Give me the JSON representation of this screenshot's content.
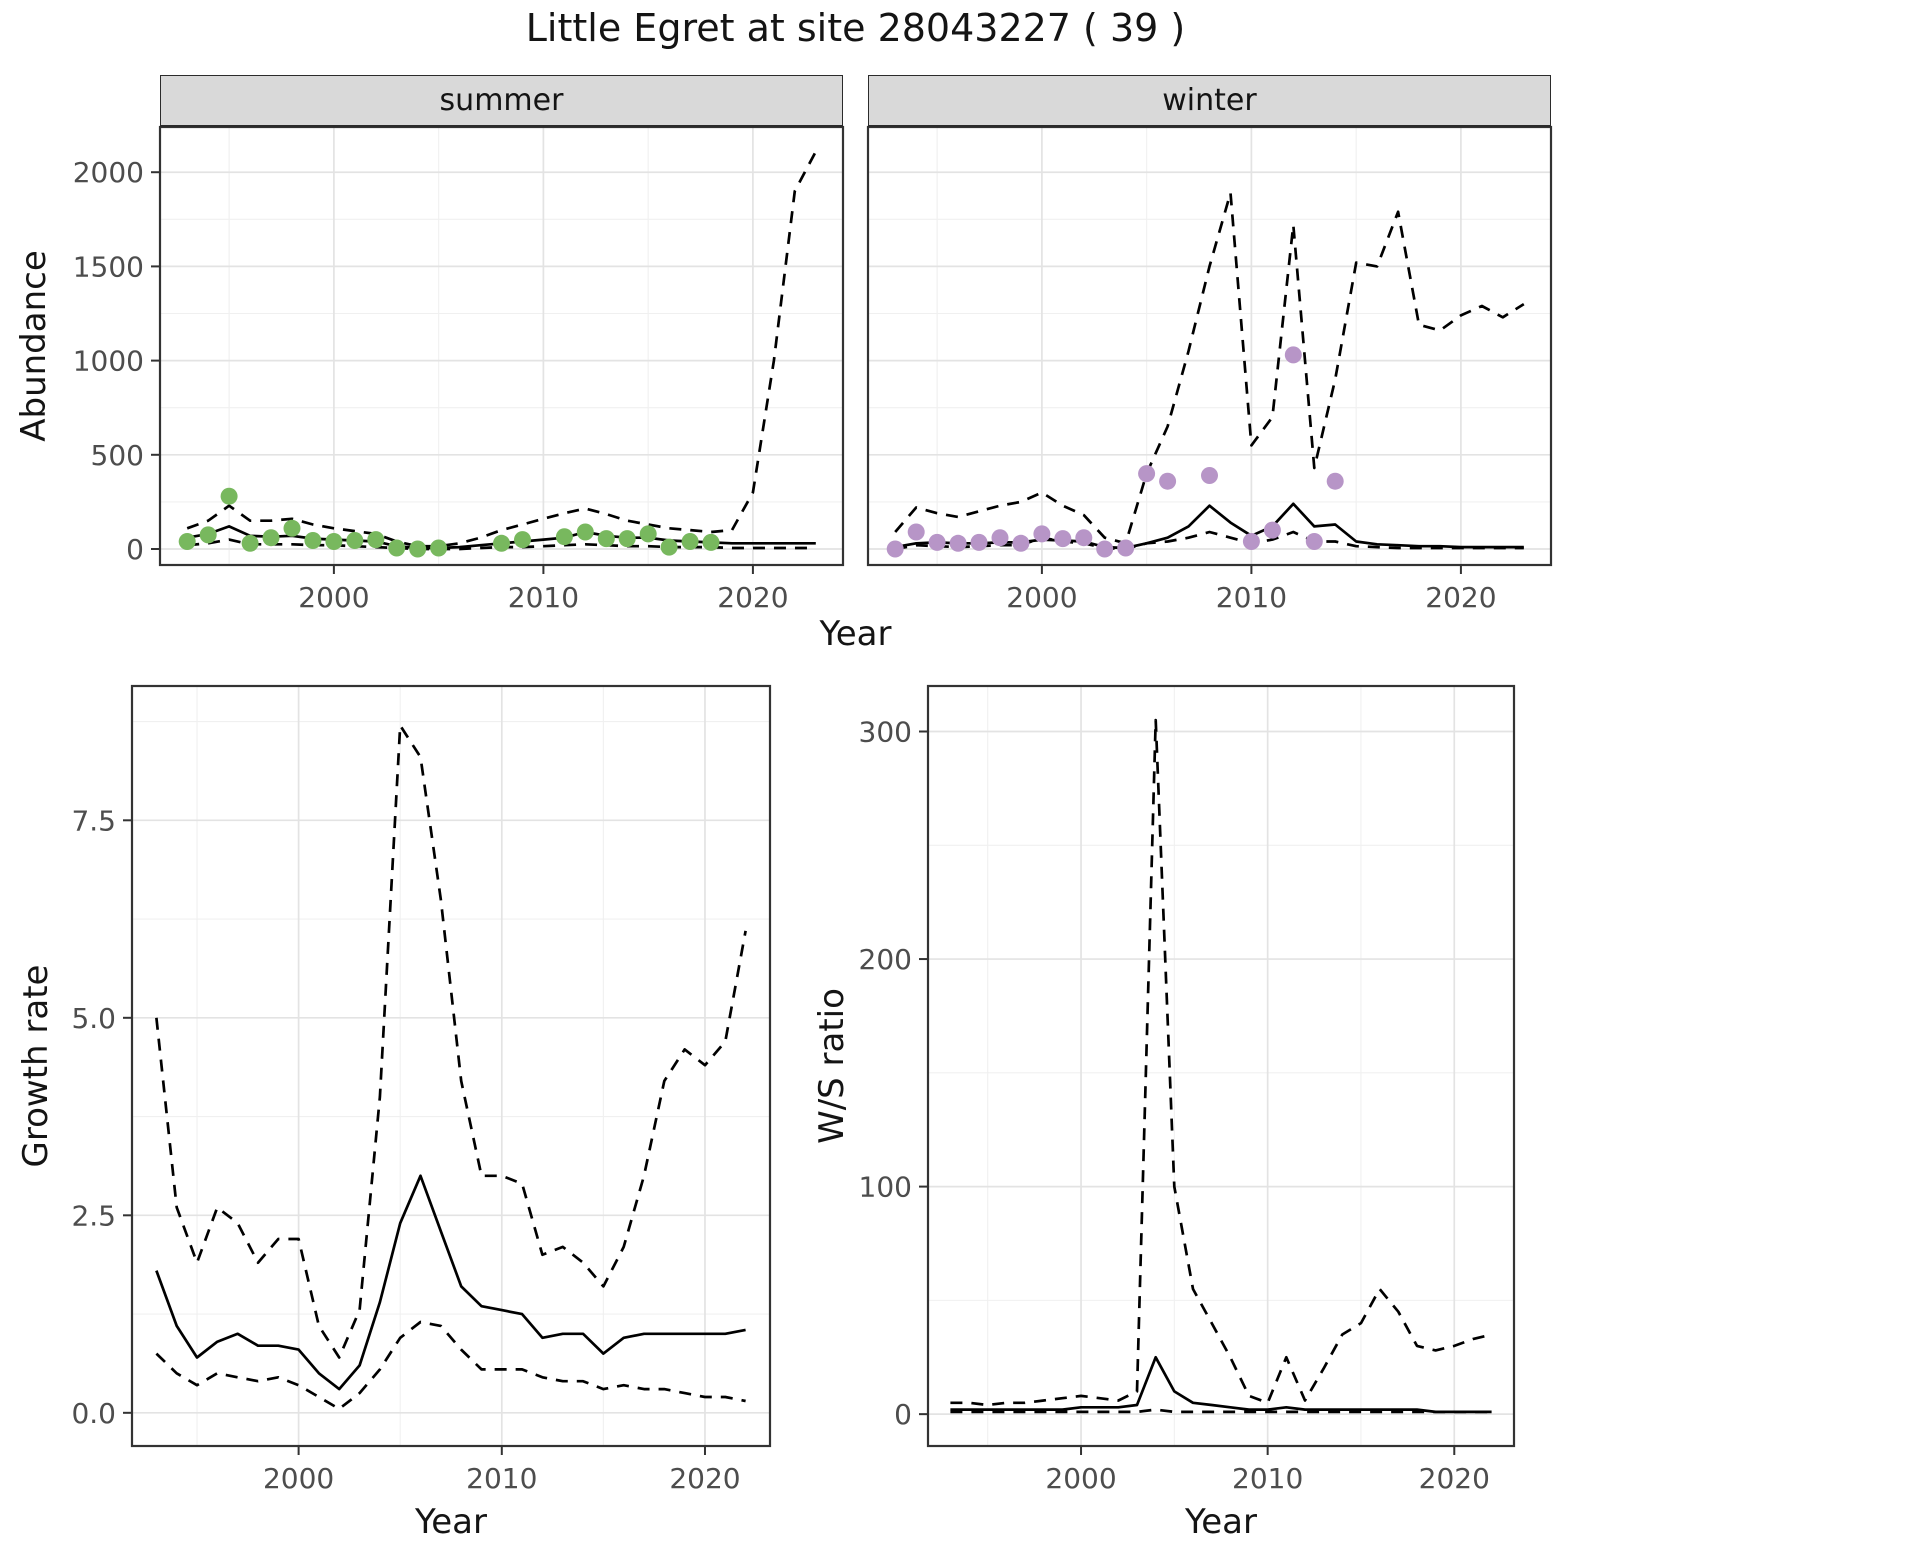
{
  "title": "Little Egret at site 28043227 ( 39 )",
  "colors": {
    "summer_points": "#78b85e",
    "winter_points": "#b795c7",
    "line": "#000000",
    "strip_background": "#d9d9d9",
    "panel_border": "#333333",
    "grid_major": "#e3e3e3",
    "grid_minor": "#f0f0f0",
    "tick_label": "#4d4d4d"
  },
  "chart_data": [
    {
      "id": "abundance-summer",
      "type": "line",
      "facet_label": "summer",
      "xlabel": "Year",
      "ylabel": "Abundance",
      "xlim": [
        1991.7,
        2024.3
      ],
      "ylim": [
        -85,
        2240
      ],
      "xticks": [
        2000,
        2010,
        2020
      ],
      "yticks": [
        0,
        500,
        1000,
        1500,
        2000
      ],
      "series": [
        {
          "name": "lower_ci",
          "kind": "line",
          "dash": true,
          "x": [
            1993,
            1994,
            1995,
            1996,
            1997,
            1998,
            1999,
            2000,
            2001,
            2002,
            2003,
            2004,
            2005,
            2006,
            2007,
            2008,
            2009,
            2010,
            2011,
            2012,
            2013,
            2014,
            2015,
            2016,
            2017,
            2018,
            2019,
            2020,
            2021,
            2022,
            2023
          ],
          "y": [
            20,
            30,
            50,
            25,
            25,
            25,
            20,
            20,
            15,
            10,
            5,
            0,
            0,
            0,
            5,
            10,
            10,
            15,
            20,
            25,
            20,
            15,
            15,
            10,
            10,
            10,
            5,
            5,
            5,
            5,
            5
          ]
        },
        {
          "name": "upper_ci",
          "kind": "line",
          "dash": true,
          "x": [
            1993,
            1994,
            1995,
            1996,
            1997,
            1998,
            1999,
            2000,
            2001,
            2002,
            2003,
            2004,
            2005,
            2006,
            2007,
            2008,
            2009,
            2010,
            2011,
            2012,
            2013,
            2014,
            2015,
            2016,
            2017,
            2018,
            2019,
            2020,
            2021,
            2022,
            2023
          ],
          "y": [
            110,
            150,
            230,
            150,
            150,
            160,
            130,
            110,
            95,
            80,
            40,
            15,
            15,
            30,
            60,
            100,
            130,
            160,
            190,
            215,
            185,
            150,
            130,
            110,
            100,
            90,
            100,
            300,
            1000,
            1900,
            2110
          ]
        },
        {
          "name": "median",
          "kind": "line",
          "dash": false,
          "x": [
            1993,
            1994,
            1995,
            1996,
            1997,
            1998,
            1999,
            2000,
            2001,
            2002,
            2003,
            2004,
            2005,
            2006,
            2007,
            2008,
            2009,
            2010,
            2011,
            2012,
            2013,
            2014,
            2015,
            2016,
            2017,
            2018,
            2019,
            2020,
            2021,
            2022,
            2023
          ],
          "y": [
            60,
            80,
            120,
            70,
            65,
            70,
            55,
            50,
            45,
            40,
            15,
            5,
            5,
            10,
            20,
            30,
            40,
            50,
            60,
            90,
            70,
            60,
            60,
            45,
            40,
            35,
            30,
            30,
            30,
            30,
            30
          ]
        },
        {
          "name": "observed_counts",
          "kind": "points",
          "color": "#78b85e",
          "x": [
            1993,
            1994,
            1995,
            1996,
            1997,
            1998,
            1999,
            2000,
            2001,
            2002,
            2003,
            2004,
            2005,
            2008,
            2009,
            2011,
            2012,
            2013,
            2014,
            2015,
            2016,
            2017,
            2018
          ],
          "y": [
            40,
            75,
            280,
            30,
            60,
            110,
            45,
            40,
            45,
            50,
            5,
            0,
            5,
            30,
            50,
            65,
            90,
            55,
            55,
            80,
            10,
            40,
            35
          ]
        }
      ]
    },
    {
      "id": "abundance-winter",
      "type": "line",
      "facet_label": "winter",
      "xlabel": "Year",
      "ylabel": "Abundance",
      "xlim": [
        1991.7,
        2024.3
      ],
      "ylim": [
        -85,
        2240
      ],
      "xticks": [
        2000,
        2010,
        2020
      ],
      "yticks": [
        0,
        500,
        1000,
        1500,
        2000
      ],
      "series": [
        {
          "name": "lower_ci",
          "kind": "line",
          "dash": true,
          "x": [
            1993,
            1994,
            1995,
            1996,
            1997,
            1998,
            1999,
            2000,
            2001,
            2002,
            2003,
            2004,
            2005,
            2006,
            2007,
            2008,
            2009,
            2010,
            2011,
            2012,
            2013,
            2014,
            2015,
            2016,
            2017,
            2018,
            2019,
            2020,
            2021,
            2022,
            2023
          ],
          "y": [
            0,
            20,
            15,
            10,
            15,
            20,
            20,
            60,
            40,
            30,
            5,
            0,
            30,
            40,
            60,
            90,
            60,
            30,
            50,
            90,
            40,
            40,
            15,
            10,
            5,
            5,
            5,
            5,
            5,
            5,
            5
          ]
        },
        {
          "name": "upper_ci",
          "kind": "line",
          "dash": true,
          "x": [
            1993,
            1994,
            1995,
            1996,
            1997,
            1998,
            1999,
            2000,
            2001,
            2002,
            2003,
            2004,
            2005,
            2006,
            2007,
            2008,
            2009,
            2010,
            2011,
            2012,
            2013,
            2014,
            2015,
            2016,
            2017,
            2018,
            2019,
            2020,
            2021,
            2022,
            2023
          ],
          "y": [
            90,
            220,
            190,
            170,
            200,
            230,
            250,
            300,
            230,
            180,
            60,
            30,
            400,
            650,
            1050,
            1500,
            1890,
            550,
            700,
            1720,
            430,
            900,
            1520,
            1500,
            1790,
            1190,
            1160,
            1240,
            1290,
            1230,
            1300
          ]
        },
        {
          "name": "median",
          "kind": "line",
          "dash": false,
          "x": [
            1993,
            1994,
            1995,
            1996,
            1997,
            1998,
            1999,
            2000,
            2001,
            2002,
            2003,
            2004,
            2005,
            2006,
            2007,
            2008,
            2009,
            2010,
            2011,
            2012,
            2013,
            2014,
            2015,
            2016,
            2017,
            2018,
            2019,
            2020,
            2021,
            2022,
            2023
          ],
          "y": [
            10,
            30,
            35,
            30,
            30,
            35,
            35,
            50,
            45,
            40,
            10,
            5,
            30,
            60,
            120,
            230,
            140,
            70,
            120,
            240,
            120,
            130,
            40,
            25,
            20,
            15,
            15,
            10,
            10,
            10,
            10
          ]
        },
        {
          "name": "observed_counts",
          "kind": "points",
          "color": "#b795c7",
          "x": [
            1993,
            1994,
            1995,
            1996,
            1997,
            1998,
            1999,
            2000,
            2001,
            2002,
            2003,
            2004,
            2005,
            2006,
            2008,
            2010,
            2011,
            2012,
            2013,
            2014
          ],
          "y": [
            0,
            90,
            35,
            30,
            35,
            60,
            30,
            80,
            55,
            60,
            0,
            5,
            400,
            360,
            390,
            40,
            100,
            1030,
            40,
            360
          ]
        }
      ]
    },
    {
      "id": "growth-rate",
      "type": "line",
      "facet_label": "",
      "xlabel": "Year",
      "ylabel": "Growth rate",
      "xlim": [
        1991.8,
        2023.2
      ],
      "ylim": [
        -0.42,
        9.2
      ],
      "xticks": [
        2000,
        2010,
        2020
      ],
      "yticks": [
        0,
        2.5,
        5,
        7.5
      ],
      "ytick_labels": [
        "0.0",
        "2.5",
        "5.0",
        "7.5"
      ],
      "series": [
        {
          "name": "lower_ci",
          "kind": "line",
          "dash": true,
          "x": [
            1993,
            1994,
            1995,
            1996,
            1997,
            1998,
            1999,
            2000,
            2001,
            2002,
            2003,
            2004,
            2005,
            2006,
            2007,
            2008,
            2009,
            2010,
            2011,
            2012,
            2013,
            2014,
            2015,
            2016,
            2017,
            2018,
            2019,
            2020,
            2021,
            2022
          ],
          "y": [
            0.75,
            0.5,
            0.35,
            0.5,
            0.45,
            0.4,
            0.45,
            0.35,
            0.2,
            0.05,
            0.25,
            0.55,
            0.95,
            1.15,
            1.1,
            0.8,
            0.55,
            0.55,
            0.55,
            0.45,
            0.4,
            0.4,
            0.3,
            0.35,
            0.3,
            0.3,
            0.25,
            0.2,
            0.2,
            0.15
          ]
        },
        {
          "name": "upper_ci",
          "kind": "line",
          "dash": true,
          "x": [
            1993,
            1994,
            1995,
            1996,
            1997,
            1998,
            1999,
            2000,
            2001,
            2002,
            2003,
            2004,
            2005,
            2006,
            2007,
            2008,
            2009,
            2010,
            2011,
            2012,
            2013,
            2014,
            2015,
            2016,
            2017,
            2018,
            2019,
            2020,
            2021,
            2022
          ],
          "y": [
            5.0,
            2.6,
            1.9,
            2.6,
            2.4,
            1.9,
            2.2,
            2.2,
            1.1,
            0.7,
            1.3,
            4.0,
            8.7,
            8.3,
            6.5,
            4.2,
            3.0,
            3.0,
            2.9,
            2.0,
            2.1,
            1.9,
            1.6,
            2.1,
            3.0,
            4.2,
            4.6,
            4.4,
            4.7,
            6.1
          ]
        },
        {
          "name": "median",
          "kind": "line",
          "dash": false,
          "x": [
            1993,
            1994,
            1995,
            1996,
            1997,
            1998,
            1999,
            2000,
            2001,
            2002,
            2003,
            2004,
            2005,
            2006,
            2007,
            2008,
            2009,
            2010,
            2011,
            2012,
            2013,
            2014,
            2015,
            2016,
            2017,
            2018,
            2019,
            2020,
            2021,
            2022
          ],
          "y": [
            1.8,
            1.1,
            0.7,
            0.9,
            1.0,
            0.85,
            0.85,
            0.8,
            0.5,
            0.3,
            0.6,
            1.4,
            2.4,
            3.0,
            2.3,
            1.6,
            1.35,
            1.3,
            1.25,
            0.95,
            1.0,
            1.0,
            0.75,
            0.95,
            1.0,
            1.0,
            1.0,
            1.0,
            1.0,
            1.05
          ]
        }
      ]
    },
    {
      "id": "ws-ratio",
      "type": "line",
      "facet_label": "",
      "xlabel": "Year",
      "ylabel": "W/S ratio",
      "xlim": [
        1991.8,
        2023.2
      ],
      "ylim": [
        -14,
        320
      ],
      "xticks": [
        2000,
        2010,
        2020
      ],
      "yticks": [
        0,
        100,
        200,
        300
      ],
      "series": [
        {
          "name": "lower_ci",
          "kind": "line",
          "dash": true,
          "x": [
            1993,
            1994,
            1995,
            1996,
            1997,
            1998,
            1999,
            2000,
            2001,
            2002,
            2003,
            2004,
            2005,
            2006,
            2007,
            2008,
            2009,
            2010,
            2011,
            2012,
            2013,
            2014,
            2015,
            2016,
            2017,
            2018,
            2019,
            2020,
            2021,
            2022
          ],
          "y": [
            1,
            1,
            1,
            1,
            1,
            1,
            1,
            1,
            1,
            1,
            1,
            2,
            1,
            1,
            1,
            1,
            1,
            1,
            1,
            1,
            1,
            1,
            1,
            1,
            1,
            1,
            1,
            1,
            1,
            1
          ]
        },
        {
          "name": "upper_ci",
          "kind": "line",
          "dash": true,
          "x": [
            1993,
            1994,
            1995,
            1996,
            1997,
            1998,
            1999,
            2000,
            2001,
            2002,
            2003,
            2004,
            2005,
            2006,
            2007,
            2008,
            2009,
            2010,
            2011,
            2012,
            2013,
            2014,
            2015,
            2016,
            2017,
            2018,
            2019,
            2020,
            2021,
            2022
          ],
          "y": [
            5,
            5,
            4,
            5,
            5,
            6,
            7,
            8,
            7,
            6,
            10,
            305,
            100,
            55,
            40,
            25,
            8,
            5,
            25,
            6,
            20,
            35,
            40,
            55,
            45,
            30,
            28,
            30,
            33,
            35
          ]
        },
        {
          "name": "median",
          "kind": "line",
          "dash": false,
          "x": [
            1993,
            1994,
            1995,
            1996,
            1997,
            1998,
            1999,
            2000,
            2001,
            2002,
            2003,
            2004,
            2005,
            2006,
            2007,
            2008,
            2009,
            2010,
            2011,
            2012,
            2013,
            2014,
            2015,
            2016,
            2017,
            2018,
            2019,
            2020,
            2021,
            2022
          ],
          "y": [
            2,
            2,
            2,
            2,
            2,
            2,
            2,
            3,
            3,
            3,
            4,
            25,
            10,
            5,
            4,
            3,
            2,
            2,
            3,
            2,
            2,
            2,
            2,
            2,
            2,
            2,
            1,
            1,
            1,
            1
          ]
        }
      ]
    }
  ]
}
